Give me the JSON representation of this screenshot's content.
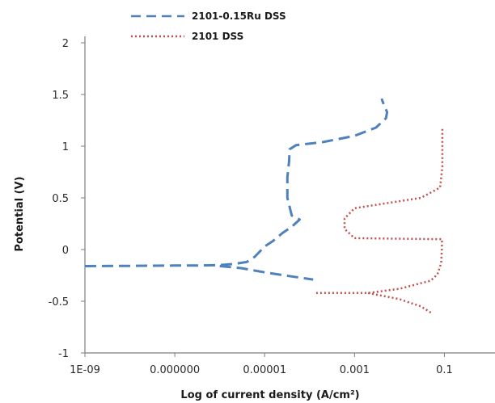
{
  "chart_data": {
    "type": "line",
    "title": "",
    "xlabel": "Log of current density (A/cm²)",
    "ylabel": "Potential (V)",
    "x_scale": "log",
    "xlim": [
      1e-09,
      1
    ],
    "ylim": [
      -1,
      2
    ],
    "x_ticks": [
      1e-09,
      1e-07,
      1e-05,
      0.001,
      0.1
    ],
    "x_tick_labels": [
      "1E-09",
      "0.000000",
      "0.00001",
      "0.001",
      "0.1"
    ],
    "y_ticks": [
      -1,
      -0.5,
      0,
      0.5,
      1,
      1.5,
      2
    ],
    "y_tick_labels": [
      "-1",
      "-0.5",
      "0",
      "0.5",
      "1",
      "1.5",
      "2"
    ],
    "grid": false,
    "legend_position": "top",
    "series": [
      {
        "name": "2101-0.15Ru DSS",
        "color": "#4f81bd",
        "style": "dashed",
        "points": [
          [
            1e-09,
            -0.16
          ],
          [
            1e-08,
            -0.158
          ],
          [
            1e-07,
            -0.155
          ],
          [
            3e-07,
            -0.155
          ],
          [
            1e-06,
            -0.15
          ],
          [
            2e-06,
            -0.14
          ],
          [
            4e-06,
            -0.12
          ],
          [
            6e-06,
            -0.07
          ],
          [
            1e-05,
            0.03
          ],
          [
            1.5e-05,
            0.08
          ],
          [
            2.5e-05,
            0.16
          ],
          [
            4e-05,
            0.22
          ],
          [
            6e-05,
            0.29
          ],
          [
            4e-05,
            0.33
          ],
          [
            3.2e-05,
            0.5
          ],
          [
            3.2e-05,
            0.7
          ],
          [
            3.5e-05,
            0.85
          ],
          [
            3.6e-05,
            0.97
          ],
          [
            5e-05,
            1.01
          ],
          [
            0.0002,
            1.04
          ],
          [
            0.001,
            1.1
          ],
          [
            0.003,
            1.18
          ],
          [
            0.005,
            1.27
          ],
          [
            0.0053,
            1.33
          ],
          [
            0.0045,
            1.4
          ],
          [
            0.004,
            1.46
          ]
        ]
      },
      {
        "name": "2101 DSS",
        "color": "#c0504d",
        "style": "dotted",
        "points": [
          [
            0.00014,
            -0.42
          ],
          [
            0.002,
            -0.42
          ],
          [
            0.01,
            -0.38
          ],
          [
            0.05,
            -0.3
          ],
          [
            0.07,
            -0.24
          ],
          [
            0.085,
            -0.13
          ],
          [
            0.088,
            0.02
          ],
          [
            0.088,
            0.1
          ],
          [
            0.001,
            0.11
          ],
          [
            0.0006,
            0.2
          ],
          [
            0.0006,
            0.3
          ],
          [
            0.001,
            0.4
          ],
          [
            0.03,
            0.5
          ],
          [
            0.08,
            0.6
          ],
          [
            0.09,
            0.8
          ],
          [
            0.09,
            1.0
          ],
          [
            0.09,
            1.18
          ]
        ]
      },
      {
        "name": "",
        "color": "#4f81bd",
        "style": "dashed",
        "points": [
          [
            1e-06,
            -0.16
          ],
          [
            3e-06,
            -0.18
          ],
          [
            1e-05,
            -0.22
          ],
          [
            4e-05,
            -0.26
          ],
          [
            0.00012,
            -0.29
          ]
        ]
      },
      {
        "name": "",
        "color": "#c0504d",
        "style": "dotted",
        "points": [
          [
            0.002,
            -0.42
          ],
          [
            0.01,
            -0.48
          ],
          [
            0.03,
            -0.55
          ],
          [
            0.05,
            -0.61
          ]
        ]
      }
    ]
  }
}
